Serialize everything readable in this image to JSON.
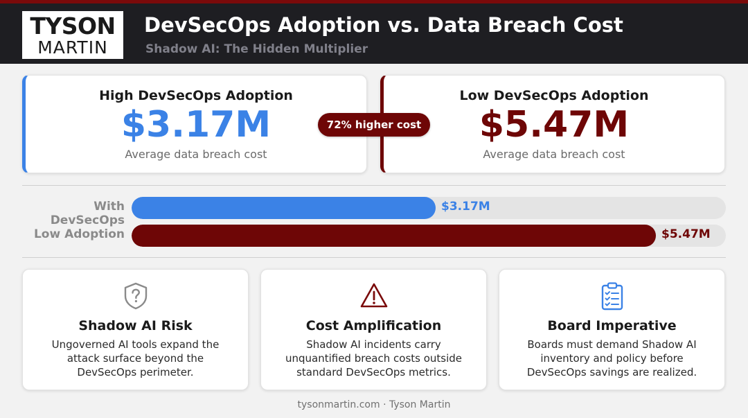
{
  "header": {
    "logo_line1": "TYSON",
    "logo_line2": "MARTIN",
    "title": "DevSecOps Adoption vs. Data Breach Cost",
    "subtitle": "Shadow AI: The Hidden Multiplier"
  },
  "stats": {
    "high": {
      "label": "High DevSecOps Adoption",
      "value": "$3.17M",
      "caption": "Average data breach cost"
    },
    "low": {
      "label": "Low DevSecOps Adoption",
      "value": "$5.47M",
      "caption": "Average data breach cost"
    },
    "badge": "72% higher cost"
  },
  "colors": {
    "blue": "#3b82e6",
    "dark_red": "#6e0606",
    "track": "#e4e4e4"
  },
  "chart_data": {
    "type": "bar",
    "orientation": "horizontal",
    "categories": [
      "With DevSecOps",
      "Low Adoption"
    ],
    "values": [
      3.17,
      5.47
    ],
    "value_labels": [
      "$3.17M",
      "$5.47M"
    ],
    "unit": "$M",
    "xlim": [
      0,
      6.2
    ],
    "title": "",
    "xlabel": "",
    "ylabel": ""
  },
  "cards": [
    {
      "icon": "shield-question-icon",
      "title": "Shadow AI Risk",
      "body": "Ungoverned AI tools expand the attack surface beyond the DevSecOps perimeter."
    },
    {
      "icon": "warning-triangle-icon",
      "title": "Cost Amplification",
      "body": "Shadow AI incidents carry unquantified breach costs outside standard DevSecOps metrics."
    },
    {
      "icon": "clipboard-checklist-icon",
      "title": "Board Imperative",
      "body": "Boards must demand Shadow AI inventory and policy before DevSecOps savings are realized."
    }
  ],
  "footer": "tysonmartin.com · Tyson Martin"
}
